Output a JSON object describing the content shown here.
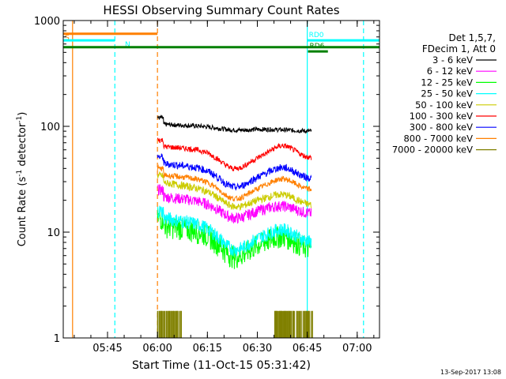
{
  "chart_data": {
    "type": "line",
    "title": "HESSI Observing Summary Count Rates",
    "ylabel_main": "Count Rate (s",
    "ylabel_sup1": "-1",
    "ylabel_mid": " detector",
    "ylabel_sup2": "-1",
    "ylabel_end": ")",
    "xlabel": "Start Time (11-Oct-15 05:31:42)",
    "y_scale": "log",
    "ylim": [
      1,
      1000
    ],
    "xlim_minutes": [
      0,
      95
    ],
    "x_ticks": [
      {
        "label": "05:45",
        "minutes": 13.3
      },
      {
        "label": "06:00",
        "minutes": 28.3
      },
      {
        "label": "06:15",
        "minutes": 43.3
      },
      {
        "label": "06:30",
        "minutes": 58.3
      },
      {
        "label": "06:45",
        "minutes": 73.3
      },
      {
        "label": "07:00",
        "minutes": 88.3
      }
    ],
    "y_ticks": [
      {
        "label": "1",
        "value": 1
      },
      {
        "label": "10",
        "value": 10
      },
      {
        "label": "100",
        "value": 100
      },
      {
        "label": "1000",
        "value": 1000
      }
    ],
    "legend_header": [
      "Det 1,5,7,",
      "FDecim 1, Att 0"
    ],
    "legend_position": "right",
    "series": [
      {
        "name": "3 - 6 keV",
        "color": "#000000",
        "values_start_end": [
          105,
          90
        ],
        "dip": 0.05,
        "noise": 0.05,
        "bump": 0.0
      },
      {
        "name": "6 - 12 keV",
        "color": "#ff00ff",
        "values_start_end": [
          22,
          15
        ],
        "dip": 0.25,
        "noise": 0.12,
        "bump": 0.1
      },
      {
        "name": "12 - 25 keV",
        "color": "#00ff00",
        "values_start_end": [
          12,
          7
        ],
        "dip": 0.35,
        "noise": 0.25,
        "bump": 0.2
      },
      {
        "name": "25 - 50 keV",
        "color": "#00ffff",
        "values_start_end": [
          14,
          8
        ],
        "dip": 0.35,
        "noise": 0.15,
        "bump": 0.2
      },
      {
        "name": "50 - 100 keV",
        "color": "#cccc00",
        "values_start_end": [
          30,
          18
        ],
        "dip": 0.25,
        "noise": 0.08,
        "bump": 0.15
      },
      {
        "name": "100 - 300 keV",
        "color": "#ff0000",
        "values_start_end": [
          65,
          50
        ],
        "dip": 0.3,
        "noise": 0.06,
        "bump": 0.25
      },
      {
        "name": "300 - 800 keV",
        "color": "#0000ff",
        "values_start_end": [
          45,
          32
        ],
        "dip": 0.3,
        "noise": 0.08,
        "bump": 0.2
      },
      {
        "name": "800 - 7000 keV",
        "color": "#ff8000",
        "values_start_end": [
          35,
          25
        ],
        "dip": 0.3,
        "noise": 0.06,
        "bump": 0.2
      },
      {
        "name": "7000 - 20000 keV",
        "color": "#808000",
        "values_start_end": [
          1.8,
          1.8
        ],
        "dip": 0,
        "noise": 0,
        "bump": 0
      }
    ],
    "data_window_minutes": [
      28.3,
      74.5
    ],
    "flags": [
      {
        "label": "S",
        "color": "#ff8000",
        "y_value": 750,
        "x_start": 0,
        "x_end": 28.3
      },
      {
        "label": "N",
        "color": "#00ffff",
        "y_value": 650,
        "x_start": 0,
        "x_end": 15.5
      },
      {
        "label": "",
        "color": "#008000",
        "y_value": 560,
        "x_start": 0,
        "x_end": 95
      },
      {
        "label": "RD6",
        "color": "#008000",
        "y_value": 510,
        "x_start": 73.5,
        "x_end": 79.5
      },
      {
        "label": "RD0",
        "color": "#00ffff",
        "y_value": 650,
        "x_start": 73.3,
        "x_end": 95
      }
    ],
    "vlines": [
      {
        "minutes": 2.8,
        "color": "#ff8000",
        "style": "solid"
      },
      {
        "minutes": 15.5,
        "color": "#00ffff",
        "style": "dashed"
      },
      {
        "minutes": 28.3,
        "color": "#ff8000",
        "style": "dashed"
      },
      {
        "minutes": 73.3,
        "color": "#00ffff",
        "style": "solid"
      },
      {
        "minutes": 90.2,
        "color": "#00ffff",
        "style": "dashed"
      }
    ],
    "attenuator_bars": [
      {
        "x_start": 28.3,
        "x_end": 35.5,
        "color": "#808000",
        "value": 1.8
      },
      {
        "x_start": 63.5,
        "x_end": 75.0,
        "color": "#808000",
        "value": 1.8
      }
    ]
  },
  "timestamp": "13-Sep-2017 13:08"
}
